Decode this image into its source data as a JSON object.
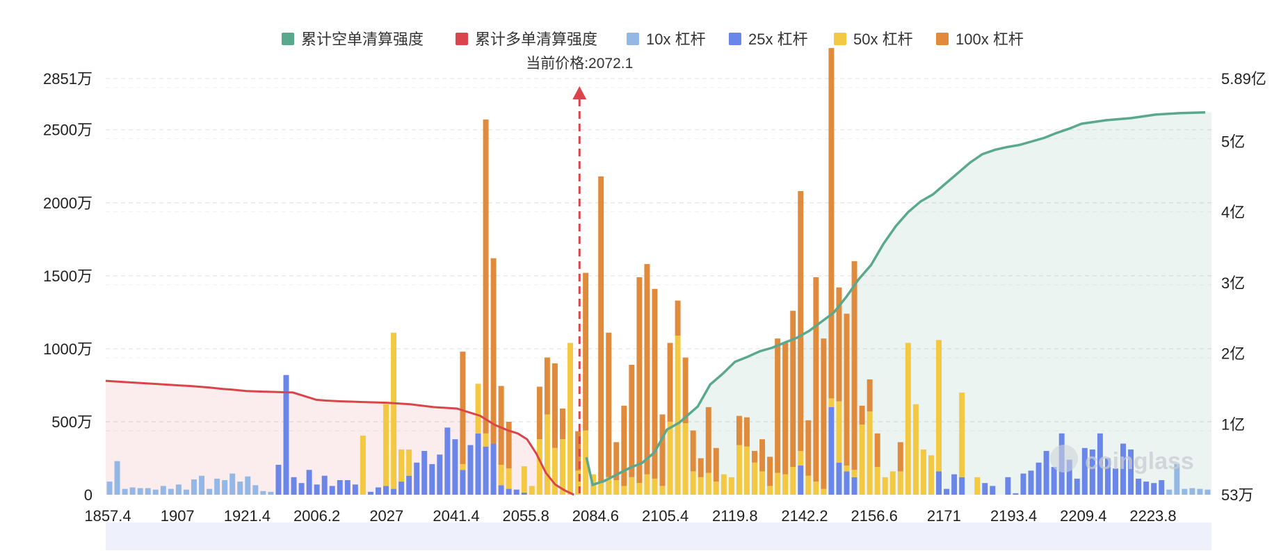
{
  "chart_data": {
    "type": "bar",
    "title": "",
    "current_price_label": "当前价格:2072.1",
    "current_price": 2072.1,
    "legend": [
      {
        "name": "累计空单清算强度",
        "color": "#5aa88e"
      },
      {
        "name": "累计多单清算强度",
        "color": "#d9454a"
      },
      {
        "name": "10x 杠杆",
        "color": "#93b8e6"
      },
      {
        "name": "25x 杠杆",
        "color": "#6a86e8"
      },
      {
        "name": "50x 杠杆",
        "color": "#f3c842"
      },
      {
        "name": "100x 杠杆",
        "color": "#e08a3c"
      }
    ],
    "x_tick_labels": [
      "1857.4",
      "1907",
      "1921.4",
      "2006.2",
      "2027",
      "2041.4",
      "2055.8",
      "2084.6",
      "2105.4",
      "2119.8",
      "2142.2",
      "2156.6",
      "2171",
      "2193.4",
      "2209.4",
      "2223.8"
    ],
    "left_axis": {
      "unit": "万",
      "ylim": [
        0,
        2851
      ],
      "tick_labels": [
        "0",
        "500万",
        "1000万",
        "1500万",
        "2000万",
        "2500万",
        "2851万"
      ]
    },
    "right_axis": {
      "tick_labels": [
        "53万",
        "1亿",
        "2亿",
        "3亿",
        "4亿",
        "5亿",
        "5.89亿"
      ]
    },
    "watermark": "coinglass",
    "series_note": "stacked values in 万 per price bucket (10x,25x,50x,100x)",
    "bars": [
      [
        90,
        0,
        0,
        0
      ],
      [
        230,
        0,
        0,
        0
      ],
      [
        40,
        0,
        0,
        0
      ],
      [
        50,
        0,
        0,
        0
      ],
      [
        45,
        0,
        0,
        0
      ],
      [
        45,
        0,
        0,
        0
      ],
      [
        35,
        0,
        0,
        0
      ],
      [
        60,
        0,
        0,
        0
      ],
      [
        40,
        0,
        0,
        0
      ],
      [
        70,
        0,
        0,
        0
      ],
      [
        35,
        0,
        0,
        0
      ],
      [
        105,
        0,
        0,
        0
      ],
      [
        130,
        0,
        0,
        0
      ],
      [
        40,
        0,
        0,
        0
      ],
      [
        110,
        0,
        0,
        0
      ],
      [
        100,
        0,
        0,
        0
      ],
      [
        145,
        0,
        0,
        0
      ],
      [
        90,
        0,
        0,
        0
      ],
      [
        125,
        0,
        0,
        0
      ],
      [
        65,
        0,
        0,
        0
      ],
      [
        25,
        0,
        0,
        0
      ],
      [
        20,
        0,
        0,
        0
      ],
      [
        0,
        205,
        0,
        0
      ],
      [
        0,
        820,
        0,
        0
      ],
      [
        0,
        120,
        0,
        0
      ],
      [
        0,
        80,
        0,
        0
      ],
      [
        0,
        170,
        0,
        0
      ],
      [
        0,
        70,
        0,
        0
      ],
      [
        0,
        130,
        0,
        0
      ],
      [
        0,
        60,
        0,
        0
      ],
      [
        0,
        100,
        0,
        0
      ],
      [
        0,
        100,
        0,
        0
      ],
      [
        0,
        70,
        0,
        0
      ],
      [
        0,
        0,
        405,
        0
      ],
      [
        0,
        20,
        0,
        0
      ],
      [
        0,
        50,
        0,
        0
      ],
      [
        0,
        60,
        560,
        0
      ],
      [
        0,
        40,
        1070,
        0
      ],
      [
        0,
        90,
        220,
        0
      ],
      [
        0,
        130,
        180,
        0
      ],
      [
        0,
        220,
        0,
        0
      ],
      [
        0,
        300,
        0,
        0
      ],
      [
        0,
        210,
        0,
        0
      ],
      [
        0,
        275,
        0,
        0
      ],
      [
        0,
        460,
        0,
        0
      ],
      [
        0,
        380,
        0,
        0
      ],
      [
        0,
        170,
        40,
        770
      ],
      [
        0,
        340,
        0,
        0
      ],
      [
        0,
        420,
        340,
        0
      ],
      [
        0,
        330,
        90,
        2150
      ],
      [
        0,
        350,
        0,
        1270
      ],
      [
        0,
        65,
        140,
        540
      ],
      [
        0,
        40,
        140,
        320
      ],
      [
        0,
        35,
        0,
        0
      ],
      [
        0,
        15,
        180,
        0
      ],
      [
        0,
        0,
        60,
        0
      ],
      [
        0,
        0,
        380,
        360
      ],
      [
        0,
        0,
        550,
        390
      ],
      [
        0,
        0,
        320,
        580
      ],
      [
        0,
        0,
        380,
        210
      ],
      [
        0,
        0,
        1040,
        0
      ],
      [
        0,
        0,
        165,
        270
      ],
      [
        0,
        0,
        440,
        1080
      ],
      [
        0,
        0,
        140,
        0
      ],
      [
        0,
        0,
        80,
        2100
      ],
      [
        0,
        0,
        120,
        990
      ],
      [
        0,
        0,
        100,
        260
      ],
      [
        0,
        0,
        60,
        550
      ],
      [
        0,
        0,
        120,
        770
      ],
      [
        0,
        0,
        80,
        1410
      ],
      [
        0,
        0,
        140,
        1440
      ],
      [
        0,
        0,
        110,
        1300
      ],
      [
        0,
        0,
        60,
        490
      ],
      [
        0,
        0,
        500,
        540
      ],
      [
        0,
        0,
        1090,
        240
      ],
      [
        0,
        0,
        490,
        450
      ],
      [
        0,
        0,
        160,
        280
      ],
      [
        0,
        0,
        120,
        130
      ],
      [
        0,
        0,
        150,
        450
      ],
      [
        0,
        0,
        90,
        230
      ],
      [
        0,
        0,
        140,
        0
      ],
      [
        0,
        0,
        120,
        0
      ],
      [
        0,
        0,
        340,
        200
      ],
      [
        0,
        0,
        330,
        200
      ],
      [
        0,
        0,
        220,
        80
      ],
      [
        0,
        0,
        160,
        220
      ],
      [
        0,
        0,
        60,
        200
      ],
      [
        0,
        0,
        150,
        920
      ],
      [
        0,
        0,
        140,
        900
      ],
      [
        0,
        0,
        190,
        1070
      ],
      [
        0,
        200,
        100,
        1780
      ],
      [
        0,
        0,
        130,
        380
      ],
      [
        0,
        0,
        90,
        1400
      ],
      [
        0,
        0,
        40,
        1030
      ],
      [
        0,
        600,
        60,
        2400
      ],
      [
        0,
        220,
        420,
        780
      ],
      [
        0,
        160,
        40,
        1040
      ],
      [
        0,
        120,
        50,
        1430
      ],
      [
        0,
        0,
        480,
        130
      ],
      [
        0,
        0,
        570,
        220
      ],
      [
        0,
        0,
        190,
        230
      ],
      [
        0,
        0,
        120,
        0
      ],
      [
        0,
        0,
        160,
        0
      ],
      [
        0,
        0,
        160,
        200
      ],
      [
        0,
        0,
        1040,
        0
      ],
      [
        0,
        0,
        620,
        0
      ],
      [
        0,
        0,
        310,
        0
      ],
      [
        0,
        0,
        270,
        0
      ],
      [
        0,
        160,
        900,
        0
      ],
      [
        0,
        40,
        0,
        0
      ],
      [
        0,
        140,
        0,
        0
      ],
      [
        0,
        120,
        580,
        0
      ],
      [
        0,
        0,
        0,
        0
      ],
      [
        0,
        0,
        120,
        0
      ],
      [
        0,
        80,
        0,
        0
      ],
      [
        0,
        60,
        0,
        0
      ],
      [
        0,
        0,
        0,
        0
      ],
      [
        0,
        120,
        0,
        0
      ],
      [
        0,
        10,
        0,
        0
      ],
      [
        0,
        145,
        0,
        0
      ],
      [
        0,
        165,
        0,
        0
      ],
      [
        0,
        220,
        0,
        0
      ],
      [
        0,
        300,
        0,
        0
      ],
      [
        0,
        190,
        0,
        0
      ],
      [
        0,
        420,
        0,
        0
      ],
      [
        0,
        240,
        0,
        0
      ],
      [
        0,
        110,
        0,
        0
      ],
      [
        0,
        320,
        0,
        0
      ],
      [
        0,
        310,
        0,
        0
      ],
      [
        0,
        420,
        0,
        0
      ],
      [
        0,
        250,
        0,
        0
      ],
      [
        0,
        180,
        0,
        0
      ],
      [
        0,
        350,
        0,
        0
      ],
      [
        0,
        310,
        0,
        0
      ],
      [
        0,
        110,
        0,
        0
      ],
      [
        0,
        90,
        0,
        0
      ],
      [
        0,
        80,
        0,
        0
      ],
      [
        0,
        100,
        0,
        0
      ],
      [
        35,
        0,
        0,
        0
      ],
      [
        210,
        0,
        0,
        0
      ],
      [
        40,
        0,
        0,
        0
      ],
      [
        45,
        0,
        0,
        0
      ],
      [
        40,
        0,
        0,
        0
      ],
      [
        35,
        0,
        0,
        0
      ]
    ],
    "long_liq_line_x": [
      0,
      0.05,
      0.1,
      0.15,
      0.18,
      0.22,
      0.25,
      0.27,
      0.3,
      0.35,
      0.4,
      0.45,
      0.47,
      0.5,
      0.55,
      0.6,
      0.65,
      0.7,
      0.75,
      0.8,
      0.83,
      0.86,
      0.88,
      0.9,
      0.92,
      0.94,
      0.96,
      0.98,
      1.0
    ],
    "long_liq_line_y": [
      780,
      770,
      760,
      750,
      745,
      735,
      725,
      720,
      710,
      705,
      700,
      650,
      645,
      640,
      635,
      630,
      620,
      600,
      590,
      540,
      480,
      440,
      420,
      380,
      280,
      150,
      70,
      30,
      0
    ],
    "short_liq_line_x": [
      0,
      0.01,
      0.03,
      0.05,
      0.07,
      0.09,
      0.11,
      0.13,
      0.15,
      0.18,
      0.2,
      0.22,
      0.24,
      0.26,
      0.28,
      0.3,
      0.32,
      0.34,
      0.36,
      0.4,
      0.42,
      0.44,
      0.46,
      0.48,
      0.5,
      0.52,
      0.54,
      0.56,
      0.58,
      0.6,
      0.62,
      0.64,
      0.66,
      0.68,
      0.7,
      0.72,
      0.74,
      0.76,
      0.78,
      0.8,
      0.84,
      0.88,
      0.92,
      0.96,
      1.0
    ],
    "short_liq_line_y": [
      0.53,
      0.14,
      0.2,
      0.29,
      0.38,
      0.45,
      0.6,
      0.92,
      1.02,
      1.25,
      1.56,
      1.71,
      1.88,
      1.95,
      2.03,
      2.08,
      2.15,
      2.22,
      2.32,
      2.58,
      2.8,
      3.05,
      3.25,
      3.55,
      3.8,
      4.0,
      4.15,
      4.25,
      4.4,
      4.55,
      4.7,
      4.82,
      4.88,
      4.92,
      4.95,
      5.0,
      5.05,
      5.12,
      5.18,
      5.25,
      5.3,
      5.33,
      5.38,
      5.4,
      5.41
    ],
    "right_axis_max": 5.89
  }
}
